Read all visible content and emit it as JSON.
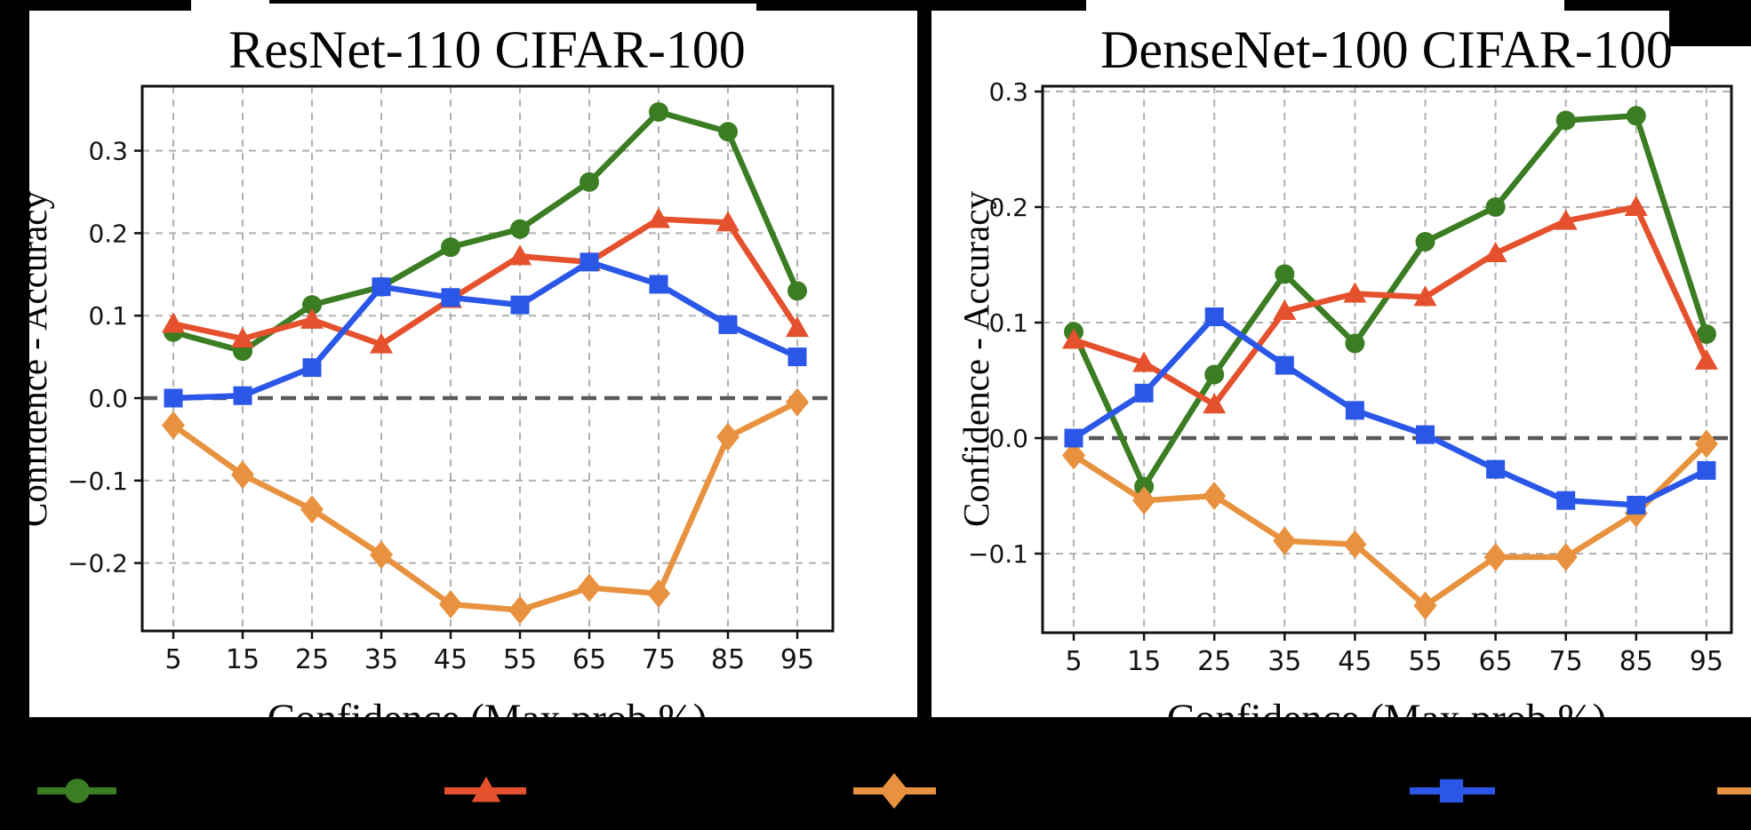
{
  "figure": {
    "background_color": "#000000",
    "panel_color": "#ffffff",
    "legend": {
      "position": "bottom-strip",
      "labels_visible": false,
      "items": [
        {
          "name": "green-circle-series-marker",
          "marker": "circle",
          "color": "#3b7d23"
        },
        {
          "name": "red-triangle-series-marker",
          "marker": "triangle",
          "color": "#e5512d"
        },
        {
          "name": "orange-diamond-series-marker",
          "marker": "diamond",
          "color": "#e8923f"
        },
        {
          "name": "blue-square-series-marker",
          "marker": "square",
          "color": "#2b57e8"
        },
        {
          "name": "cut-off-line-fragment",
          "marker": "line",
          "color": "#e8923f"
        }
      ]
    }
  },
  "chart_data": [
    {
      "type": "line",
      "title": "ResNet-110 CIFAR-100",
      "xlabel": "Confidence (Max prob %)",
      "ylabel": "Confidence - Accuracy",
      "x": [
        5,
        15,
        25,
        35,
        45,
        55,
        65,
        75,
        85,
        95
      ],
      "x_tick_labels": [
        "5",
        "15",
        "25",
        "35",
        "45",
        "55",
        "65",
        "75",
        "85",
        "95"
      ],
      "y_ticks": [
        {
          "value": 0.3,
          "label": "0.3"
        },
        {
          "value": 0.2,
          "label": "0.2"
        },
        {
          "value": 0.1,
          "label": "0.1"
        },
        {
          "value": 0.0,
          "label": "0.0"
        },
        {
          "value": -0.1,
          "label": "−0.1"
        },
        {
          "value": -0.2,
          "label": "−0.2"
        }
      ],
      "ylim": [
        -0.282,
        0.378
      ],
      "xlim": [
        0.5,
        100
      ],
      "grid": true,
      "zero_line": true,
      "series": [
        {
          "name": "green-circle",
          "marker": "circle",
          "color": "#3b7d23",
          "values": [
            0.08,
            0.057,
            0.113,
            0.135,
            0.183,
            0.205,
            0.262,
            0.347,
            0.323,
            0.13
          ]
        },
        {
          "name": "red-triangle",
          "marker": "triangle",
          "color": "#e5512d",
          "values": [
            0.09,
            0.072,
            0.095,
            0.065,
            0.12,
            0.172,
            0.165,
            0.217,
            0.213,
            0.085
          ]
        },
        {
          "name": "orange-diamond",
          "marker": "diamond",
          "color": "#e8923f",
          "values": [
            -0.033,
            -0.093,
            -0.135,
            -0.19,
            -0.25,
            -0.257,
            -0.23,
            -0.237,
            -0.047,
            -0.005
          ]
        },
        {
          "name": "blue-square",
          "marker": "square",
          "color": "#2b57e8",
          "values": [
            0.0,
            0.003,
            0.037,
            0.135,
            0.122,
            0.113,
            0.165,
            0.138,
            0.089,
            0.05
          ]
        }
      ]
    },
    {
      "type": "line",
      "title": "DenseNet-100 CIFAR-100",
      "xlabel": "Confidence (Max prob %)",
      "ylabel": "Confidence - Accuracy",
      "x": [
        5,
        15,
        25,
        35,
        45,
        55,
        65,
        75,
        85,
        95
      ],
      "x_tick_labels": [
        "5",
        "15",
        "25",
        "35",
        "45",
        "55",
        "65",
        "75",
        "85",
        "95"
      ],
      "y_ticks": [
        {
          "value": 0.3,
          "label": "0.3"
        },
        {
          "value": 0.2,
          "label": "0.2"
        },
        {
          "value": 0.1,
          "label": "0.1"
        },
        {
          "value": 0.0,
          "label": "0.0"
        },
        {
          "value": -0.1,
          "label": "−0.1"
        }
      ],
      "ylim": [
        -0.168,
        0.303
      ],
      "xlim": [
        0.5,
        99
      ],
      "grid": true,
      "zero_line": true,
      "series": [
        {
          "name": "green-circle",
          "marker": "circle",
          "color": "#3b7d23",
          "values": [
            0.092,
            -0.042,
            0.055,
            0.142,
            0.082,
            0.17,
            0.2,
            0.275,
            0.279,
            0.09
          ]
        },
        {
          "name": "red-triangle",
          "marker": "triangle",
          "color": "#e5512d",
          "values": [
            0.085,
            0.065,
            0.029,
            0.11,
            0.125,
            0.122,
            0.16,
            0.188,
            0.2,
            0.067
          ]
        },
        {
          "name": "orange-diamond",
          "marker": "diamond",
          "color": "#e8923f",
          "values": [
            -0.015,
            -0.054,
            -0.05,
            -0.089,
            -0.092,
            -0.145,
            -0.103,
            -0.103,
            -0.065,
            -0.005
          ]
        },
        {
          "name": "blue-square",
          "marker": "square",
          "color": "#2b57e8",
          "values": [
            0.0,
            0.039,
            0.105,
            0.063,
            0.024,
            0.003,
            -0.027,
            -0.054,
            -0.058,
            -0.028
          ]
        }
      ]
    }
  ]
}
